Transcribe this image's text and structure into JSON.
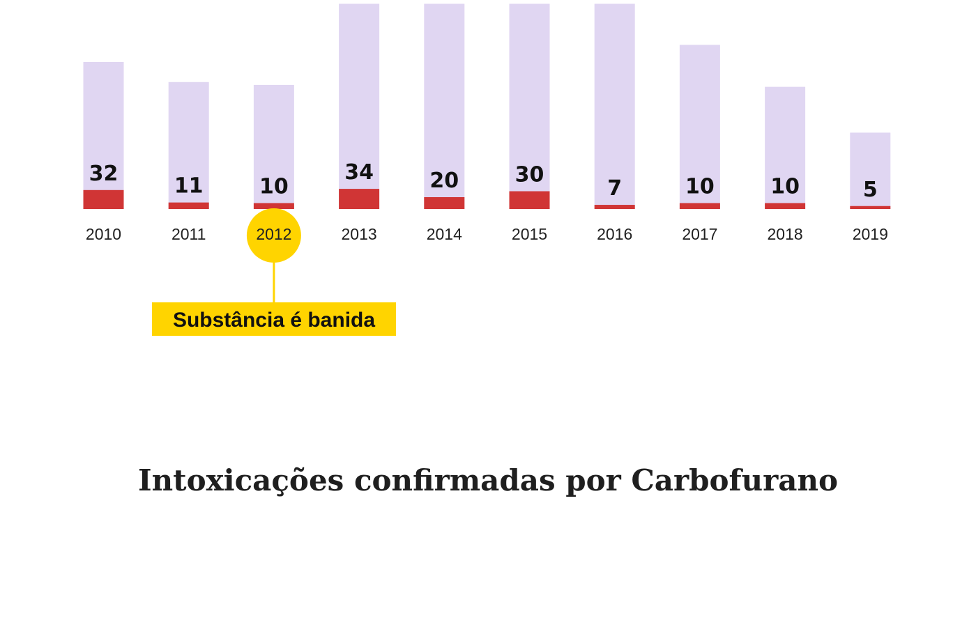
{
  "colors": {
    "background": "#ffffff",
    "total_bar": "#e0d6f2",
    "confirmed_bar": "#d03535",
    "highlight": "#ffd400"
  },
  "chart_data": {
    "type": "bar",
    "title": "Intoxicações confirmadas por Carbofurano",
    "categories": [
      "2010",
      "2011",
      "2012",
      "2013",
      "2014",
      "2015",
      "2016",
      "2017",
      "2018",
      "2019"
    ],
    "series": [
      {
        "values": [
          32,
          11,
          10,
          34,
          20,
          30,
          7,
          10,
          10,
          5
        ]
      },
      {
        "values": [
          154,
          133,
          130,
          215,
          215,
          215,
          215,
          172,
          128,
          80
        ]
      }
    ],
    "highlight_category": "2012",
    "annotation": "Substância é banida",
    "grid": false,
    "legend": "none"
  }
}
